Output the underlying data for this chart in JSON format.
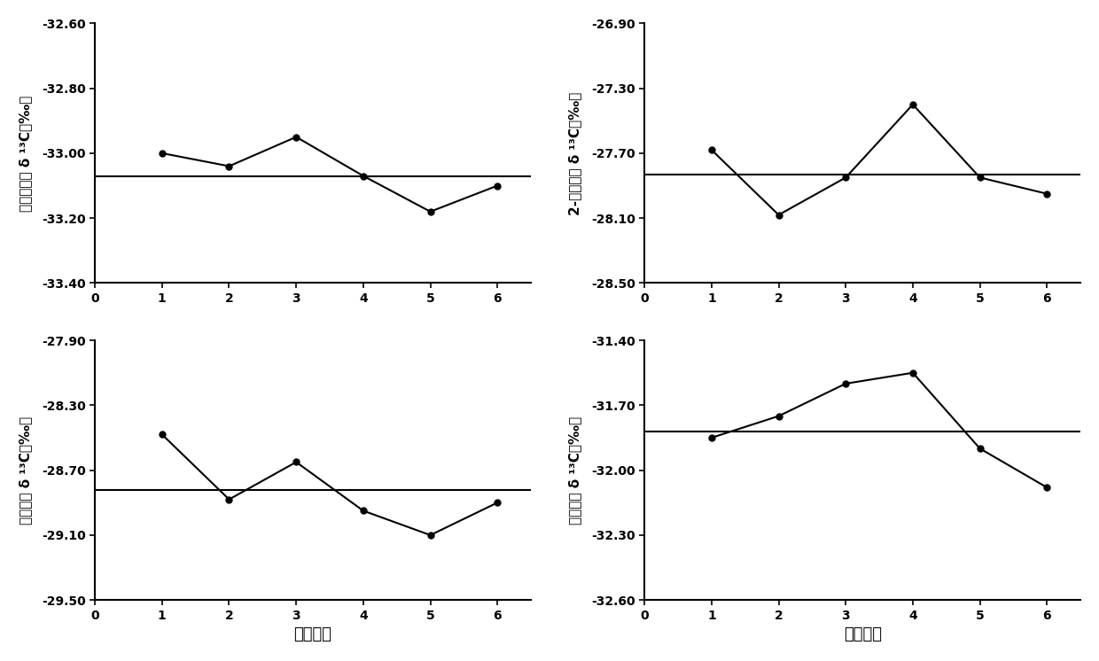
{
  "subplots": [
    {
      "ylabel_lines": [
        "乙酸异戊酵 δ ¹³C（‰）"
      ],
      "ylabel_cn": "乙酸异戊酵",
      "ylabel_sci": "δ ¹³C（‰）",
      "xlabel": "",
      "x": [
        1,
        2,
        3,
        4,
        5,
        6
      ],
      "y": [
        -33.0,
        -33.04,
        -32.95,
        -33.07,
        -33.18,
        -33.1
      ],
      "mean": -33.07,
      "ylim": [
        -33.4,
        -32.6
      ],
      "yticks": [
        -33.4,
        -33.2,
        -33.0,
        -32.8,
        -32.6
      ],
      "xlim": [
        0,
        6.5
      ],
      "xticks": [
        0,
        1,
        2,
        3,
        4,
        5,
        6
      ]
    },
    {
      "ylabel_cn": "2-苯基乙醇",
      "ylabel_sci": "δ ¹³C（‰）",
      "xlabel": "",
      "x": [
        1,
        2,
        3,
        4,
        5,
        6
      ],
      "y": [
        -27.68,
        -28.08,
        -27.85,
        -27.4,
        -27.85,
        -27.95
      ],
      "mean": -27.83,
      "ylim": [
        -28.5,
        -26.9
      ],
      "yticks": [
        -28.5,
        -28.1,
        -27.7,
        -27.3,
        -26.9
      ],
      "xlim": [
        0,
        6.5
      ],
      "xticks": [
        0,
        1,
        2,
        3,
        4,
        5,
        6
      ]
    },
    {
      "ylabel_cn": "辛酸乙酵",
      "ylabel_sci": "δ ¹³C（‰）",
      "xlabel": "实验次数",
      "x": [
        1,
        2,
        3,
        4,
        5,
        6
      ],
      "y": [
        -28.48,
        -28.88,
        -28.65,
        -28.95,
        -29.1,
        -28.9
      ],
      "mean": -28.82,
      "ylim": [
        -29.5,
        -27.9
      ],
      "yticks": [
        -29.5,
        -29.1,
        -28.7,
        -28.3,
        -27.9
      ],
      "xlim": [
        0,
        6.5
      ],
      "xticks": [
        0,
        1,
        2,
        3,
        4,
        5,
        6
      ]
    },
    {
      "ylabel_cn": "癸酸乙酵",
      "ylabel_sci": "δ ¹³C（‰）",
      "xlabel": "实验次数",
      "x": [
        1,
        2,
        3,
        4,
        5,
        6
      ],
      "y": [
        -31.85,
        -31.75,
        -31.6,
        -31.55,
        -31.9,
        -32.08
      ],
      "mean": -31.82,
      "ylim": [
        -32.6,
        -31.4
      ],
      "yticks": [
        -32.6,
        -32.3,
        -32.0,
        -31.7,
        -31.4
      ],
      "xlim": [
        0,
        6.5
      ],
      "xticks": [
        0,
        1,
        2,
        3,
        4,
        5,
        6
      ]
    }
  ],
  "line_color": "#000000",
  "marker": "o",
  "markersize": 5,
  "linewidth": 1.5,
  "mean_linewidth": 1.5,
  "fontsize_ylabel": 11,
  "fontsize_xlabel": 13,
  "fontsize_tick": 10
}
